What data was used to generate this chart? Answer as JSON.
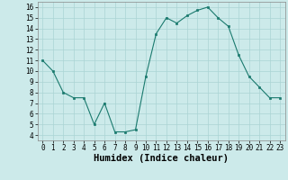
{
  "x": [
    0,
    1,
    2,
    3,
    4,
    5,
    6,
    7,
    8,
    9,
    10,
    11,
    12,
    13,
    14,
    15,
    16,
    17,
    18,
    19,
    20,
    21,
    22,
    23
  ],
  "y": [
    11,
    10,
    8,
    7.5,
    7.5,
    5,
    7,
    4.3,
    4.3,
    4.5,
    9.5,
    13.5,
    15,
    14.5,
    15.2,
    15.7,
    16,
    15,
    14.2,
    11.5,
    9.5,
    8.5,
    7.5,
    7.5
  ],
  "line_color": "#1a7a6e",
  "marker_color": "#1a7a6e",
  "bg_color": "#cceaea",
  "grid_color": "#aad4d4",
  "xlabel": "Humidex (Indice chaleur)",
  "xlim": [
    -0.5,
    23.5
  ],
  "ylim": [
    3.5,
    16.5
  ],
  "yticks": [
    4,
    5,
    6,
    7,
    8,
    9,
    10,
    11,
    12,
    13,
    14,
    15,
    16
  ],
  "xticks": [
    0,
    1,
    2,
    3,
    4,
    5,
    6,
    7,
    8,
    9,
    10,
    11,
    12,
    13,
    14,
    15,
    16,
    17,
    18,
    19,
    20,
    21,
    22,
    23
  ],
  "tick_fontsize": 5.5,
  "xlabel_fontsize": 7.5
}
